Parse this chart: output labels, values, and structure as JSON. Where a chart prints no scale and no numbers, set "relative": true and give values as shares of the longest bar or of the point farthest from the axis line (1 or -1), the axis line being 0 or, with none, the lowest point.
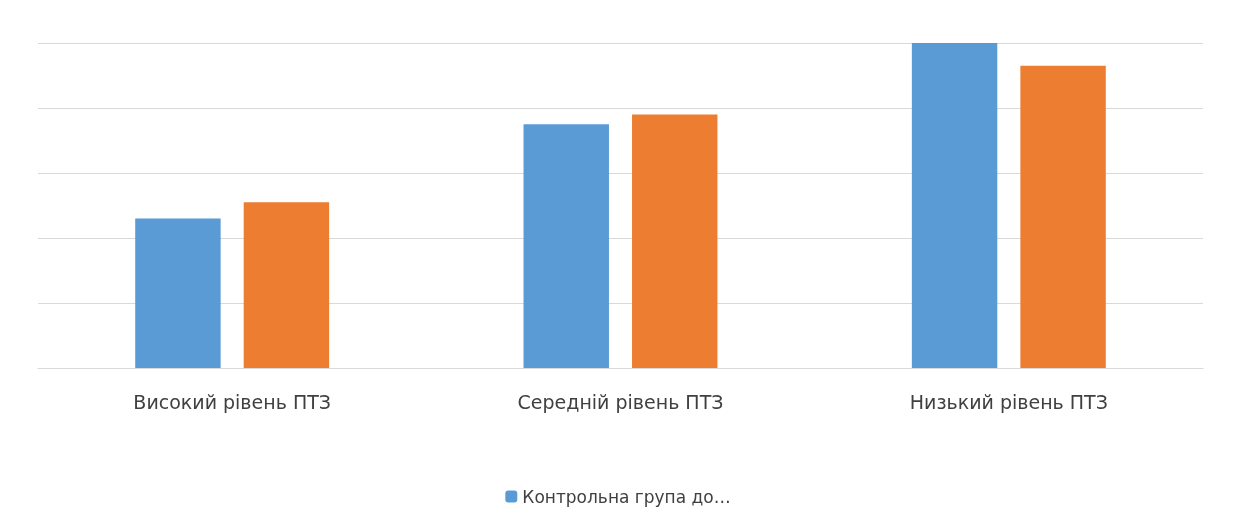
{
  "chart_data": {
    "type": "bar",
    "relative": true,
    "categories": [
      "Високий рівень ПТЗ",
      "Середній рівень ПТЗ",
      "Низький рівень ПТЗ"
    ],
    "series": [
      {
        "name": "Контрольна група до…",
        "color": "#5b9bd5",
        "values": [
          0.46,
          0.75,
          1
        ]
      },
      {
        "color": "#ed7d31",
        "values": [
          0.51,
          0.78,
          0.93
        ]
      }
    ],
    "grid": "y",
    "legend": "bottom"
  }
}
